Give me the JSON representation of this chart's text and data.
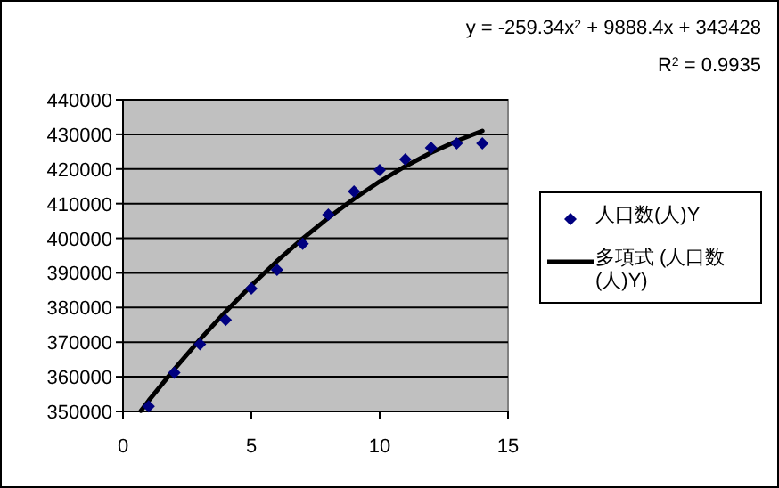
{
  "chart_data": {
    "type": "scatter",
    "marker": "diamond",
    "grid": "y",
    "legend": "right",
    "xlim": [
      0,
      15
    ],
    "xticks": [
      0,
      5,
      10,
      15
    ],
    "ylim": [
      350000,
      440000
    ],
    "yticks": [
      350000,
      360000,
      370000,
      380000,
      390000,
      400000,
      410000,
      420000,
      430000,
      440000
    ],
    "annotations": [
      "y = -259.34x$^{2}$ + 9888.4x + 343428",
      "R$^{2}$ = 0.9935"
    ],
    "series": [
      {
        "name": "人口数(人)Y",
        "color": "#000080",
        "x": [
          1,
          2,
          3,
          4,
          5,
          6,
          7,
          8,
          9,
          10,
          11,
          12,
          13,
          14
        ],
        "values": [
          351500,
          361200,
          369400,
          376400,
          385500,
          390900,
          398400,
          406800,
          413500,
          419700,
          422800,
          426100,
          427400,
          427400
        ]
      },
      {
        "name": "多項式 (人口数(人)Y)",
        "type": "line",
        "color": "#000000",
        "line_style": "solid",
        "marker": "none",
        "x": [
          0.7,
          1,
          2,
          3,
          4,
          5,
          6,
          7,
          8,
          9,
          10,
          11,
          12,
          13,
          14
        ],
        "values": [
          350200,
          353100,
          362200,
          370800,
          378800,
          386400,
          393400,
          399900,
          405900,
          411400,
          416400,
          420800,
          424700,
          428100,
          431000
        ]
      }
    ]
  }
}
